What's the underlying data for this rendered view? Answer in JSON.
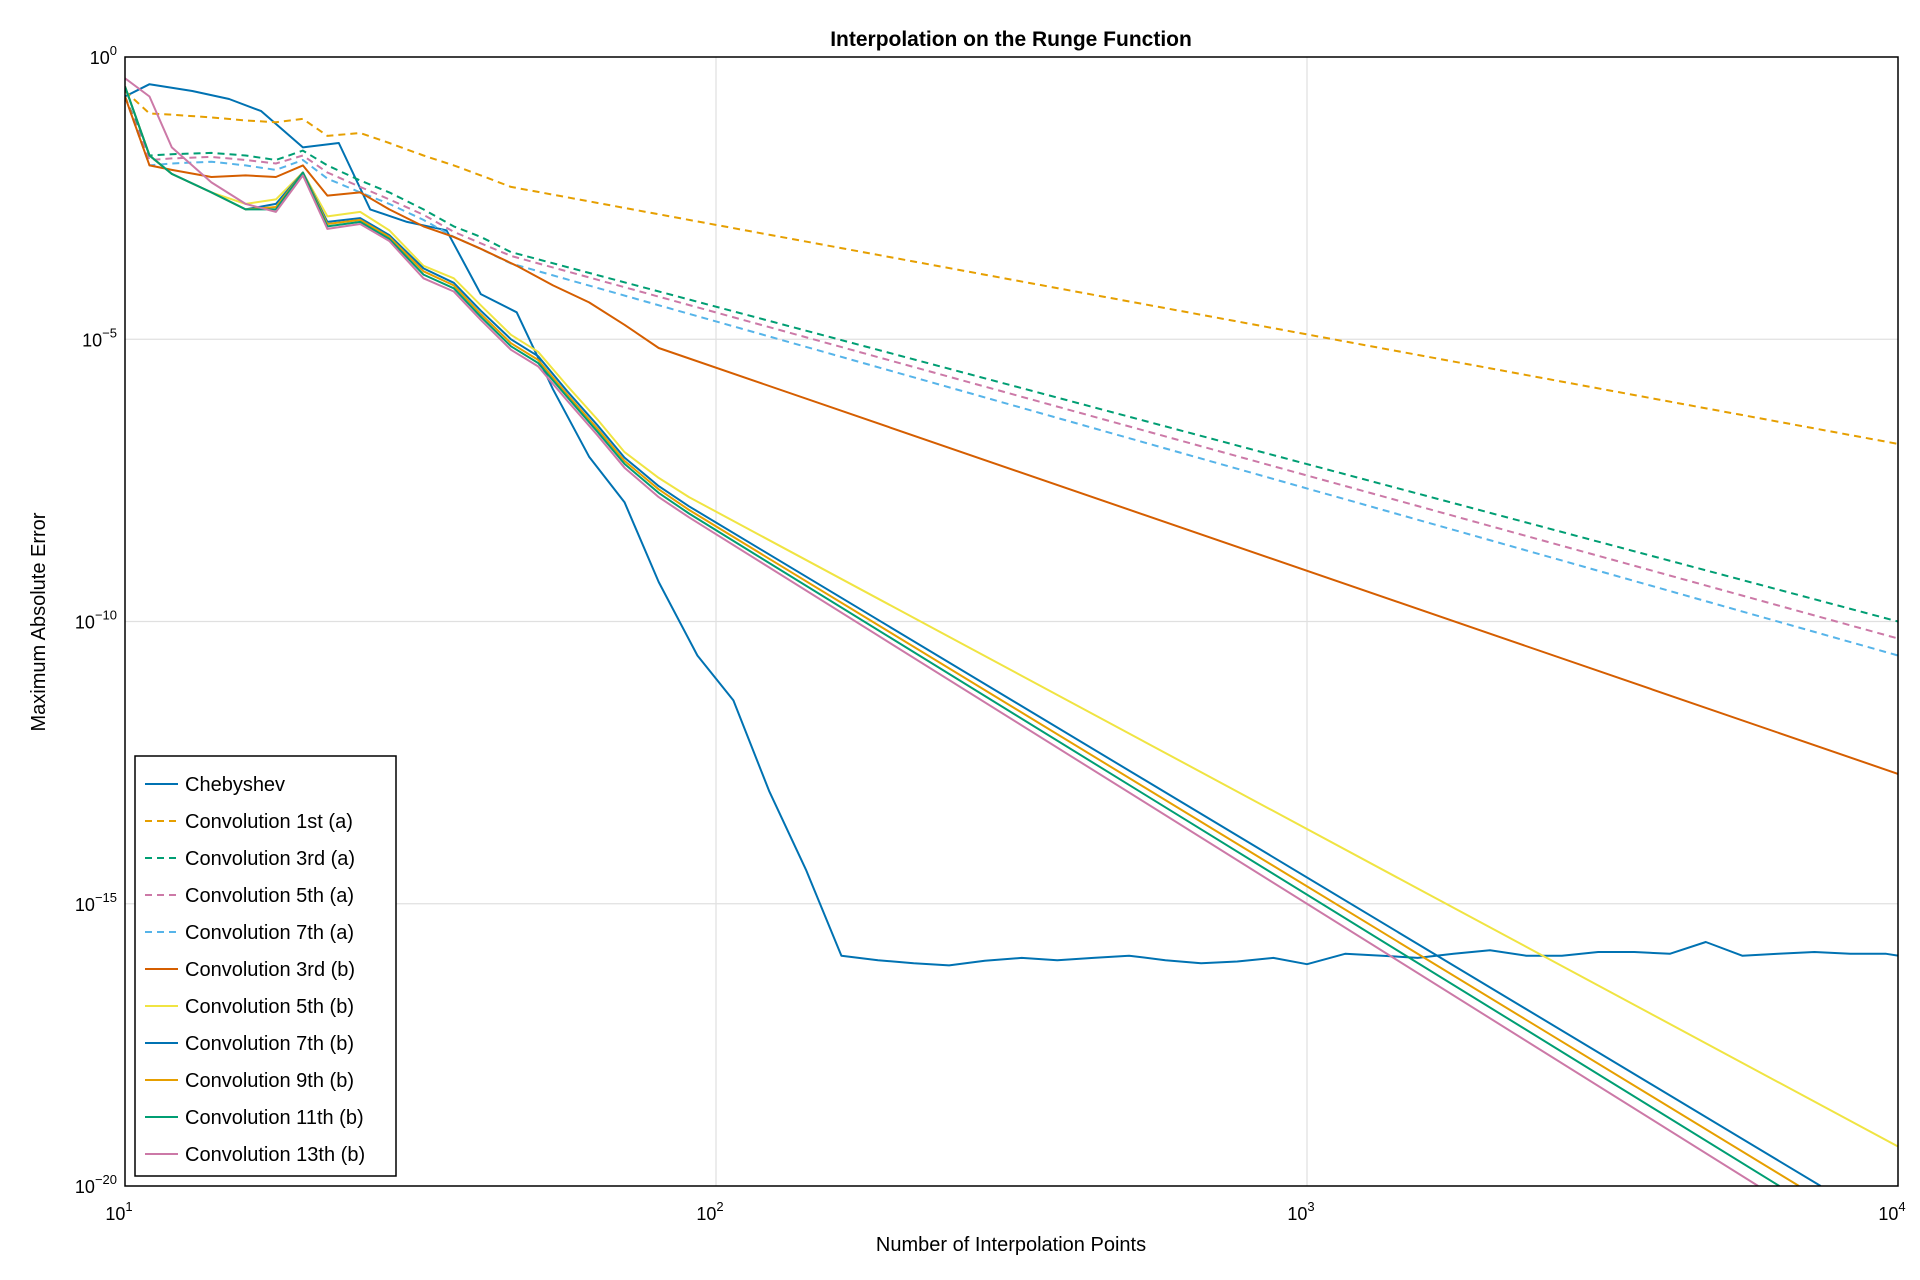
{
  "chart_data": {
    "type": "line",
    "title": "Interpolation on the Runge Function",
    "xlabel": "Number of Interpolation Points",
    "ylabel": "Maximum Absolute Error",
    "xscale": "log10",
    "yscale": "log10",
    "xlim": [
      10,
      10000
    ],
    "ylim": [
      1e-20,
      1
    ],
    "x_ticks": [
      {
        "base": "10",
        "exp": "1",
        "value": 10
      },
      {
        "base": "10",
        "exp": "2",
        "value": 100
      },
      {
        "base": "10",
        "exp": "3",
        "value": 1000
      },
      {
        "base": "10",
        "exp": "4",
        "value": 10000
      }
    ],
    "y_ticks": [
      {
        "base": "10",
        "exp": "0",
        "value": 1
      },
      {
        "base": "10",
        "exp": "−5",
        "value": 1e-05
      },
      {
        "base": "10",
        "exp": "−10",
        "value": 1e-10
      },
      {
        "base": "10",
        "exp": "−15",
        "value": 1e-15
      },
      {
        "base": "10",
        "exp": "−20",
        "value": 1e-20
      }
    ],
    "grid": true,
    "legend_position": "bottom-left",
    "series": [
      {
        "name": "Chebyshev",
        "color": "#0072b2",
        "dash": "solid",
        "x": [
          10,
          11,
          13,
          15,
          17,
          20,
          23,
          26,
          30,
          35,
          40,
          46,
          53,
          61,
          70,
          80,
          93,
          107,
          123,
          142,
          163,
          188,
          216,
          248,
          285,
          329,
          378,
          435,
          500,
          576,
          662,
          762,
          877,
          1000,
          1160,
          1340,
          1540,
          1770,
          2040,
          2350,
          2700,
          3110,
          3580,
          4110,
          4730,
          5450,
          6270,
          7220,
          8300,
          9550,
          10000
        ],
        "y": [
          0.2,
          0.33,
          0.25,
          0.18,
          0.11,
          0.025,
          0.03,
          0.002,
          0.0012,
          0.00085,
          6.3e-05,
          3e-05,
          1.3e-06,
          8.3e-08,
          1.3e-08,
          5e-10,
          2.5e-11,
          4e-12,
          1e-13,
          4e-15,
          1.2e-16,
          1e-16,
          8.8e-17,
          8.1e-17,
          9.8e-17,
          1.1e-16,
          1e-16,
          1.1e-16,
          1.2e-16,
          1e-16,
          8.8e-17,
          9.5e-17,
          1.1e-16,
          8.5e-17,
          1.3e-16,
          1.2e-16,
          1.1e-16,
          1.3e-16,
          1.5e-16,
          1.2e-16,
          1.2e-16,
          1.4e-16,
          1.4e-16,
          1.3e-16,
          2.1e-16,
          1.2e-16,
          1.3e-16,
          1.4e-16,
          1.3e-16,
          1.3e-16,
          1.2e-16
        ]
      },
      {
        "name": "Convolution 1st (a)",
        "color": "#e69f00",
        "dash": "dashed",
        "x": [
          10,
          11,
          12,
          14,
          16,
          18,
          20,
          22,
          25,
          28,
          32,
          36,
          40,
          45,
          10000
        ],
        "y": [
          0.25,
          0.1,
          0.095,
          0.085,
          0.075,
          0.07,
          0.08,
          0.04,
          0.045,
          0.03,
          0.018,
          0.012,
          0.008,
          0.005,
          1.4e-07
        ]
      },
      {
        "name": "Convolution 3rd (a)",
        "color": "#009e73",
        "dash": "dashed",
        "x": [
          10,
          11,
          12,
          14,
          16,
          18,
          20,
          22,
          25,
          28,
          32,
          36,
          40,
          45,
          10000
        ],
        "y": [
          0.2,
          0.018,
          0.019,
          0.02,
          0.018,
          0.015,
          0.022,
          0.012,
          0.0065,
          0.004,
          0.002,
          0.001,
          0.00065,
          0.00035,
          1e-10
        ]
      },
      {
        "name": "Convolution 5th (a)",
        "color": "#cc79a7",
        "dash": "dashed",
        "x": [
          10,
          11,
          12,
          14,
          16,
          18,
          20,
          22,
          25,
          28,
          32,
          36,
          40,
          45,
          10000
        ],
        "y": [
          0.2,
          0.015,
          0.016,
          0.017,
          0.015,
          0.013,
          0.018,
          0.009,
          0.005,
          0.003,
          0.0016,
          0.0008,
          0.0005,
          0.0003,
          5e-11
        ]
      },
      {
        "name": "Convolution 7th (a)",
        "color": "#56b4e9",
        "dash": "dashed",
        "x": [
          10,
          11,
          12,
          14,
          16,
          18,
          20,
          22,
          25,
          28,
          32,
          36,
          40,
          45,
          10000
        ],
        "y": [
          0.2,
          0.012,
          0.013,
          0.014,
          0.012,
          0.01,
          0.015,
          0.007,
          0.004,
          0.0025,
          0.0013,
          0.00065,
          0.0004,
          0.00022,
          2.5e-11
        ]
      },
      {
        "name": "Convolution 3rd (b)",
        "color": "#d55e00",
        "dash": "solid",
        "x": [
          10,
          11,
          12,
          14,
          16,
          18,
          20,
          22,
          25,
          28,
          32,
          36,
          40,
          46,
          53,
          61,
          70,
          80,
          10000
        ],
        "y": [
          0.2,
          0.012,
          0.01,
          0.0075,
          0.008,
          0.0075,
          0.012,
          0.0035,
          0.004,
          0.002,
          0.001,
          0.00065,
          0.0004,
          0.0002,
          9e-05,
          4.5e-05,
          1.8e-05,
          7e-06,
          2e-13
        ]
      },
      {
        "name": "Convolution 5th (b)",
        "color": "#f0e442",
        "dash": "solid",
        "x": [
          10,
          11,
          12,
          14,
          16,
          18,
          20,
          22,
          25,
          28,
          32,
          36,
          40,
          45,
          50,
          56,
          63,
          70,
          80,
          90,
          10000
        ],
        "y": [
          0.3,
          0.018,
          0.0085,
          0.004,
          0.0025,
          0.003,
          0.009,
          0.0015,
          0.0018,
          0.00085,
          0.0002,
          0.00012,
          4e-05,
          1.2e-05,
          6e-06,
          1.5e-06,
          3.8e-07,
          1e-07,
          3.5e-08,
          1.6e-08,
          5e-20
        ]
      },
      {
        "name": "Convolution 7th (b)",
        "color": "#0072b2",
        "dash": "solid",
        "x": [
          10,
          11,
          12,
          14,
          16,
          18,
          20,
          22,
          25,
          28,
          32,
          36,
          40,
          45,
          50,
          56,
          63,
          70,
          80,
          90,
          7400
        ],
        "y": [
          0.3,
          0.018,
          0.0085,
          0.004,
          0.002,
          0.0025,
          0.009,
          0.0012,
          0.0014,
          0.0007,
          0.00018,
          0.0001,
          3.2e-05,
          1e-05,
          5e-06,
          1.2e-06,
          3e-07,
          8e-08,
          2.5e-08,
          1.1e-08,
          1e-20
        ]
      },
      {
        "name": "Convolution 9th (b)",
        "color": "#e69f00",
        "dash": "solid",
        "x": [
          10,
          11,
          12,
          14,
          16,
          18,
          20,
          22,
          25,
          28,
          32,
          36,
          40,
          45,
          50,
          56,
          63,
          70,
          80,
          90,
          6800
        ],
        "y": [
          0.3,
          0.018,
          0.0085,
          0.004,
          0.002,
          0.0022,
          0.009,
          0.0011,
          0.0013,
          0.00065,
          0.00016,
          9e-05,
          2.8e-05,
          8.5e-06,
          4.3e-06,
          1.05e-06,
          2.6e-07,
          7e-08,
          2.2e-08,
          9.5e-09,
          1e-20
        ]
      },
      {
        "name": "Convolution 11th (b)",
        "color": "#009e73",
        "dash": "solid",
        "x": [
          10,
          11,
          12,
          14,
          16,
          18,
          20,
          22,
          25,
          28,
          32,
          36,
          40,
          45,
          50,
          56,
          63,
          70,
          80,
          90,
          6300
        ],
        "y": [
          0.3,
          0.018,
          0.0085,
          0.004,
          0.002,
          0.002,
          0.009,
          0.001,
          0.0012,
          0.0006,
          0.00014,
          8e-05,
          2.5e-05,
          7.5e-06,
          3.8e-06,
          9.5e-07,
          2.3e-07,
          6.2e-08,
          1.9e-08,
          8.2e-09,
          1e-20
        ]
      },
      {
        "name": "Convolution 13th (b)",
        "color": "#cc79a7",
        "dash": "solid",
        "x": [
          10,
          11,
          12,
          14,
          16,
          18,
          20,
          22,
          25,
          28,
          32,
          36,
          40,
          45,
          50,
          56,
          63,
          70,
          80,
          90,
          5800
        ],
        "y": [
          0.42,
          0.2,
          0.025,
          0.006,
          0.0025,
          0.0018,
          0.008,
          0.0009,
          0.0011,
          0.00055,
          0.00012,
          7e-05,
          2.2e-05,
          6.5e-06,
          3.3e-06,
          8.2e-07,
          2e-07,
          5.3e-08,
          1.6e-08,
          7e-09,
          1e-20
        ]
      }
    ]
  }
}
